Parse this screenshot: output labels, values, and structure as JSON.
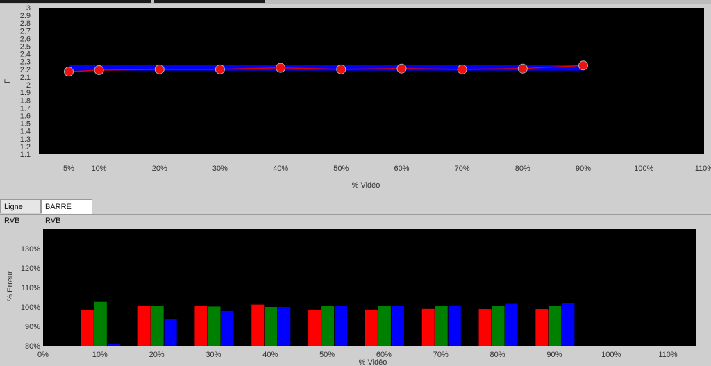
{
  "tabs": [
    {
      "label": "Ligne RVB",
      "active": false
    },
    {
      "label": "BARRE RVB",
      "active": true
    }
  ],
  "chart_data": [
    {
      "type": "line",
      "xlabel": "% Vidéo",
      "ylabel": "Γ",
      "x_ticks": [
        "5%",
        "10%",
        "20%",
        "30%",
        "40%",
        "50%",
        "60%",
        "70%",
        "80%",
        "90%",
        "100%",
        "110%"
      ],
      "y_ticks": [
        "1.1",
        "1.2",
        "1.3",
        "1.4",
        "1.5",
        "1.6",
        "1.7",
        "1.8",
        "1.9",
        "2",
        "2.1",
        "2.2",
        "2.3",
        "2.4",
        "2.5",
        "2.6",
        "2.7",
        "2.8",
        "2.9",
        "3"
      ],
      "ylim": [
        1.1,
        3.0
      ],
      "xlim": [
        0,
        110
      ],
      "grid": false,
      "series": [
        {
          "color": "#0000ff",
          "x": [
            5,
            90
          ],
          "y": [
            2.22,
            2.22
          ]
        },
        {
          "color": "#e00000",
          "marker_color": "#ee1111",
          "x": [
            5,
            10,
            20,
            30,
            40,
            50,
            60,
            70,
            80,
            90
          ],
          "y": [
            2.17,
            2.19,
            2.2,
            2.2,
            2.22,
            2.2,
            2.21,
            2.2,
            2.21,
            2.25
          ]
        }
      ]
    },
    {
      "type": "bar",
      "xlabel": "% Vidéo",
      "ylabel": "% Erreur",
      "x_ticks": [
        "0%",
        "10%",
        "20%",
        "30%",
        "40%",
        "50%",
        "60%",
        "70%",
        "80%",
        "90%",
        "100%",
        "110%"
      ],
      "y_ticks": [
        "80%",
        "90%",
        "100%",
        "110%",
        "120%",
        "130%"
      ],
      "ylim": [
        80,
        140
      ],
      "xlim": [
        0,
        110
      ],
      "grid": false,
      "categories": [
        "10%",
        "20%",
        "30%",
        "40%",
        "50%",
        "60%",
        "70%",
        "80%",
        "90%"
      ],
      "category_x": [
        10,
        20,
        30,
        40,
        50,
        60,
        70,
        80,
        90
      ],
      "series": [
        {
          "color": "#ff0000",
          "values": [
            98.5,
            100.7,
            100.5,
            101.2,
            98.3,
            98.6,
            99.0,
            98.9,
            98.9
          ]
        },
        {
          "color": "#008000",
          "values": [
            102.6,
            100.7,
            100.2,
            100.0,
            100.7,
            100.7,
            100.6,
            100.4,
            100.4
          ]
        },
        {
          "color": "#0000ff",
          "values": [
            81.0,
            93.8,
            97.9,
            100.0,
            100.7,
            100.5,
            100.8,
            101.6,
            101.9
          ]
        }
      ]
    }
  ]
}
